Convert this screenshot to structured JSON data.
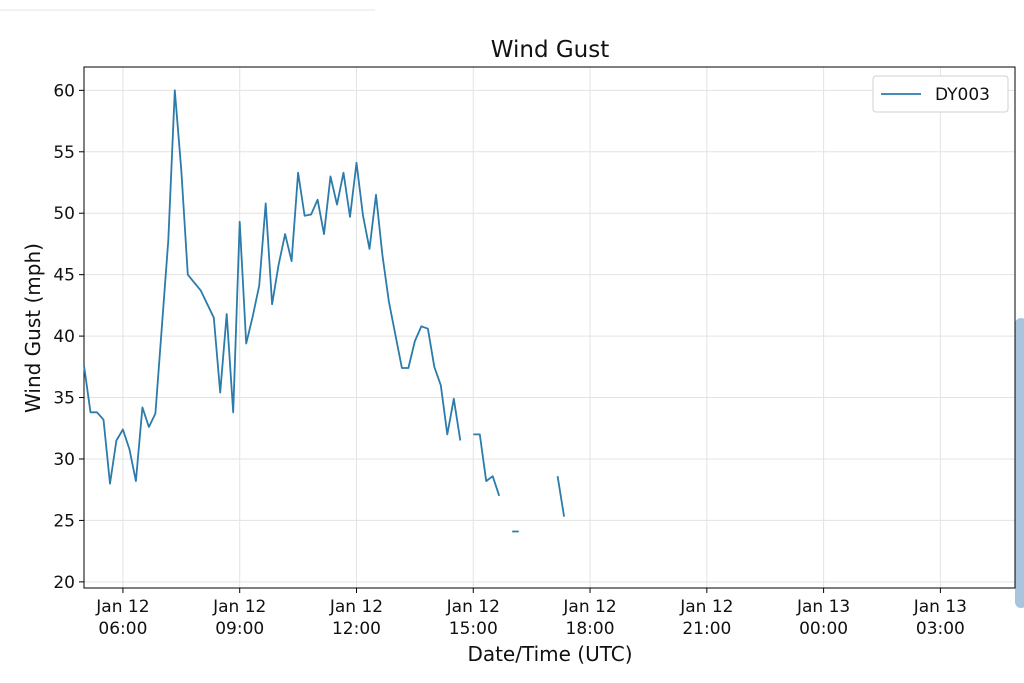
{
  "chart_data": {
    "type": "line",
    "title": "Wind Gust",
    "x_label": "Date/Time (UTC)",
    "y_label": "Wind Gust (mph)",
    "x": [
      "Jan 12 05:00",
      "Jan 12 05:10",
      "Jan 12 05:20",
      "Jan 12 05:30",
      "Jan 12 05:40",
      "Jan 12 05:50",
      "Jan 12 06:00",
      "Jan 12 06:10",
      "Jan 12 06:20",
      "Jan 12 06:30",
      "Jan 12 06:40",
      "Jan 12 06:50",
      "Jan 12 07:10",
      "Jan 12 07:20",
      "Jan 12 07:30",
      "Jan 12 07:40",
      "Jan 12 08:00",
      "Jan 12 08:20",
      "Jan 12 08:30",
      "Jan 12 08:40",
      "Jan 12 08:50",
      "Jan 12 09:00",
      "Jan 12 09:10",
      "Jan 12 09:20",
      "Jan 12 09:30",
      "Jan 12 09:40",
      "Jan 12 09:50",
      "Jan 12 10:00",
      "Jan 12 10:10",
      "Jan 12 10:20",
      "Jan 12 10:30",
      "Jan 12 10:40",
      "Jan 12 10:50",
      "Jan 12 11:00",
      "Jan 12 11:10",
      "Jan 12 11:20",
      "Jan 12 11:30",
      "Jan 12 11:40",
      "Jan 12 11:50",
      "Jan 12 12:00",
      "Jan 12 12:10",
      "Jan 12 12:20",
      "Jan 12 12:30",
      "Jan 12 12:40",
      "Jan 12 12:50",
      "Jan 12 13:00",
      "Jan 12 13:10",
      "Jan 12 13:20",
      "Jan 12 13:30",
      "Jan 12 13:40",
      "Jan 12 13:50",
      "Jan 12 14:00",
      "Jan 12 14:10",
      "Jan 12 14:20",
      "Jan 12 14:30",
      "Jan 12 14:40",
      "Jan 12 14:50",
      "Jan 12 15:00",
      "Jan 12 15:10",
      "Jan 12 15:20",
      "Jan 12 15:30",
      "Jan 12 15:40",
      "Jan 12 15:50",
      "Jan 12 16:00",
      "Jan 12 16:10",
      "Jan 12 16:40",
      "Jan 12 17:10",
      "Jan 12 17:20"
    ],
    "series": [
      {
        "name": "DY003",
        "color": "#2b7bab",
        "values": [
          37.6,
          33.8,
          33.8,
          33.2,
          28.0,
          31.5,
          32.4,
          30.8,
          28.2,
          34.2,
          32.6,
          33.7,
          47.8,
          60.0,
          53.5,
          45.0,
          43.7,
          41.5,
          35.4,
          41.8,
          33.8,
          49.3,
          39.4,
          41.6,
          44.1,
          50.8,
          42.6,
          45.8,
          48.3,
          46.1,
          53.3,
          49.8,
          49.9,
          51.1,
          48.3,
          53.0,
          50.7,
          53.3,
          49.7,
          54.1,
          49.8,
          47.1,
          51.5,
          46.6,
          42.8,
          40.1,
          37.4,
          37.4,
          39.6,
          40.8,
          40.6,
          37.5,
          36.0,
          32.0,
          34.9,
          31.5,
          null,
          32.0,
          32.0,
          28.2,
          28.6,
          27.0,
          null,
          24.1,
          24.1,
          null,
          28.6,
          25.3
        ]
      }
    ],
    "xlim": [
      "Jan 12 05:00",
      "Jan 13 04:55"
    ],
    "xticks": [
      "Jan 12 06:00",
      "Jan 12 09:00",
      "Jan 12 12:00",
      "Jan 12 15:00",
      "Jan 12 18:00",
      "Jan 12 21:00",
      "Jan 13 00:00",
      "Jan 13 03:00"
    ],
    "ylim": [
      19.5,
      61.9
    ],
    "yticks": [
      20,
      25,
      30,
      35,
      40,
      45,
      50,
      55,
      60
    ],
    "grid": true,
    "legend_position": "upper right"
  }
}
